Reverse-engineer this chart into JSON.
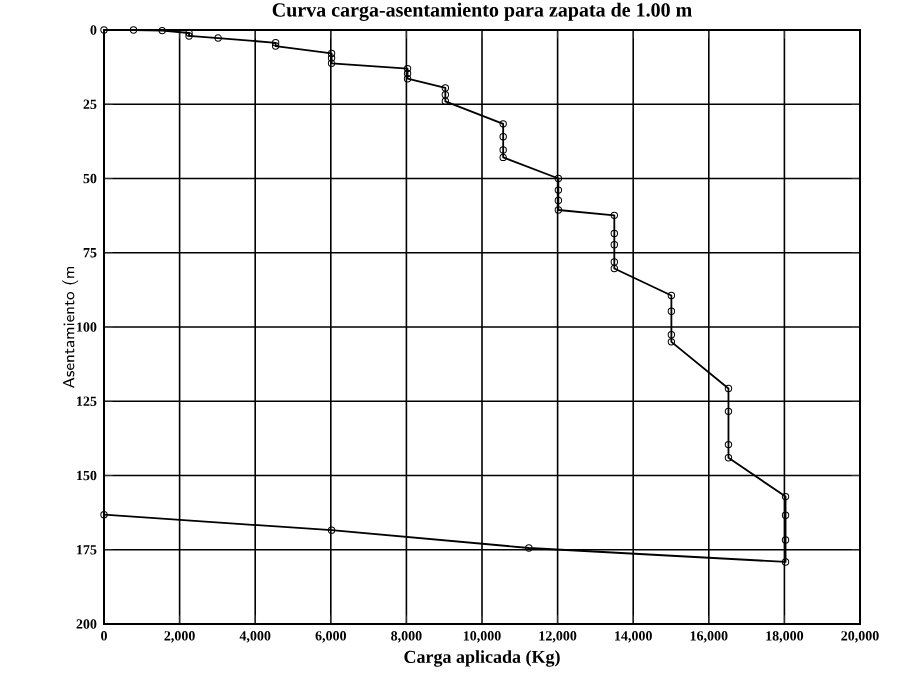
{
  "chart_data": {
    "type": "line",
    "title": "Curva carga-asentamiento para zapata de 1.00 m",
    "xlabel": "Carga aplicada (Kg)",
    "ylabel": "Asentamiento (m",
    "xlim": [
      0,
      20000
    ],
    "ylim": [
      200,
      0
    ],
    "xticks": [
      {
        "value": 0,
        "label": "0"
      },
      {
        "value": 2000,
        "label": "2,000"
      },
      {
        "value": 4000,
        "label": "4,000"
      },
      {
        "value": 6000,
        "label": "6,000"
      },
      {
        "value": 8000,
        "label": "8,000"
      },
      {
        "value": 10000,
        "label": "10,000"
      },
      {
        "value": 12000,
        "label": "12,000"
      },
      {
        "value": 14000,
        "label": "14,000"
      },
      {
        "value": 16000,
        "label": "16,000"
      },
      {
        "value": 18000,
        "label": "18,000"
      },
      {
        "value": 20000,
        "label": "20,000"
      }
    ],
    "yticks": [
      0,
      25,
      50,
      75,
      100,
      125,
      150,
      175,
      200
    ],
    "grid": true,
    "marker": "circle",
    "line_style": "solid",
    "series": [
      {
        "color": "#000000",
        "x": [
          0,
          780,
          1540,
          2250,
          2250,
          3020,
          4540,
          4540,
          6020,
          6020,
          6020,
          8030,
          8030,
          8030,
          9030,
          9030,
          9030,
          10560,
          10560,
          10560,
          10560,
          12020,
          12020,
          12020,
          12020,
          13500,
          13500,
          13500,
          13500,
          13500,
          15010,
          15010,
          15010,
          15010,
          16520,
          16520,
          16520,
          16520,
          18030,
          18030,
          18030,
          18030,
          11240,
          6020,
          0
        ],
        "values": [
          0,
          0,
          0.2,
          1,
          2,
          2.7,
          4.3,
          5.4,
          7.9,
          9.4,
          11.2,
          13,
          14.6,
          16.4,
          19.5,
          21.8,
          24,
          31.6,
          35.9,
          40.4,
          42.9,
          50,
          53.9,
          57.4,
          60.6,
          62.4,
          68.5,
          72.3,
          78.1,
          80.3,
          89.4,
          94.7,
          102.6,
          105,
          120.7,
          128.4,
          139.6,
          144,
          157.1,
          163.4,
          171.7,
          179.1,
          174.4,
          168.4,
          163.2
        ]
      }
    ]
  }
}
